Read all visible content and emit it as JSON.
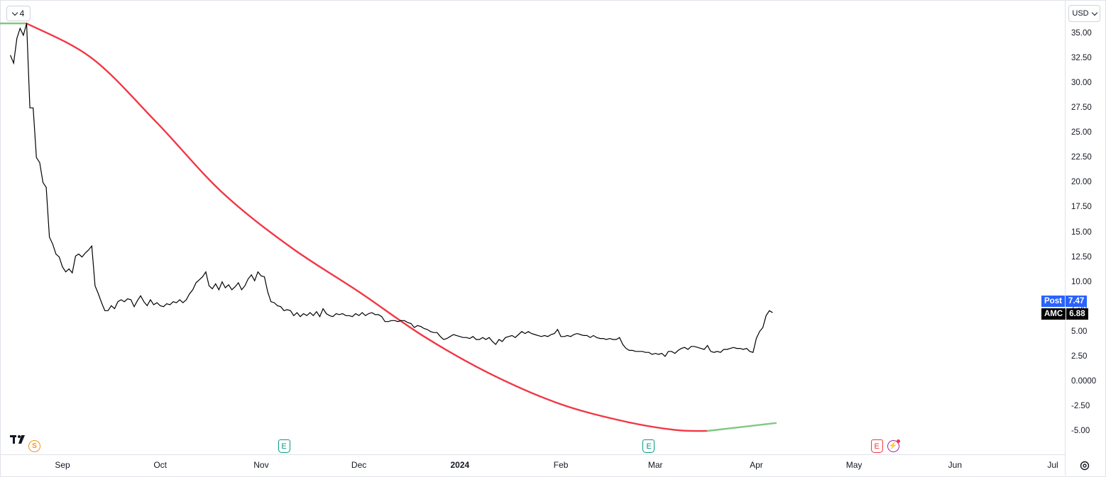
{
  "toolbar": {
    "collapse_count": "4",
    "currency": "USD"
  },
  "chart_data": {
    "type": "line",
    "ylim": [
      -5.0,
      36.0
    ],
    "y_ticks": [
      "35.00",
      "32.50",
      "30.00",
      "27.50",
      "25.00",
      "22.50",
      "20.00",
      "17.50",
      "15.00",
      "12.50",
      "10.00",
      "7.50",
      "5.00",
      "2.50",
      "0.0000",
      "-2.50",
      "-5.00"
    ],
    "x_tick_labels": [
      {
        "label": "Sep",
        "date": "2023-09-01"
      },
      {
        "label": "Oct",
        "date": "2023-10-01"
      },
      {
        "label": "Nov",
        "date": "2023-11-01"
      },
      {
        "label": "Dec",
        "date": "2023-12-01"
      },
      {
        "label": "2024",
        "date": "2024-01-01"
      },
      {
        "label": "Feb",
        "date": "2024-02-01"
      },
      {
        "label": "Mar",
        "date": "2024-03-01"
      },
      {
        "label": "Apr",
        "date": "2024-04-01"
      },
      {
        "label": "May",
        "date": "2024-05-01"
      },
      {
        "label": "Jun",
        "date": "2024-06-01"
      },
      {
        "label": "Jul",
        "date": "2024-07-01"
      }
    ],
    "series": [
      {
        "name": "AMC",
        "color": "#000000",
        "points": [
          [
            "2023-08-16",
            32.8
          ],
          [
            "2023-08-17",
            32.0
          ],
          [
            "2023-08-18",
            34.5
          ],
          [
            "2023-08-19",
            35.5
          ],
          [
            "2023-08-20",
            34.8
          ],
          [
            "2023-08-21",
            36.0
          ],
          [
            "2023-08-22",
            27.5
          ],
          [
            "2023-08-23",
            27.5
          ],
          [
            "2023-08-24",
            22.5
          ],
          [
            "2023-08-25",
            22.0
          ],
          [
            "2023-08-26",
            20.0
          ],
          [
            "2023-08-27",
            19.5
          ],
          [
            "2023-08-28",
            14.5
          ],
          [
            "2023-08-29",
            13.8
          ],
          [
            "2023-08-30",
            12.8
          ],
          [
            "2023-08-31",
            12.5
          ],
          [
            "2023-09-01",
            11.5
          ],
          [
            "2023-09-02",
            11.0
          ],
          [
            "2023-09-03",
            11.3
          ],
          [
            "2023-09-04",
            10.9
          ],
          [
            "2023-09-05",
            12.6
          ],
          [
            "2023-09-06",
            12.8
          ],
          [
            "2023-09-07",
            12.5
          ],
          [
            "2023-09-08",
            12.9
          ],
          [
            "2023-09-09",
            13.2
          ],
          [
            "2023-09-10",
            13.6
          ],
          [
            "2023-09-11",
            9.6
          ],
          [
            "2023-09-12",
            8.8
          ],
          [
            "2023-09-13",
            7.9
          ],
          [
            "2023-09-14",
            7.1
          ],
          [
            "2023-09-15",
            7.1
          ],
          [
            "2023-09-16",
            7.6
          ],
          [
            "2023-09-17",
            7.3
          ],
          [
            "2023-09-18",
            8.0
          ],
          [
            "2023-09-19",
            8.2
          ],
          [
            "2023-09-20",
            8.0
          ],
          [
            "2023-09-21",
            8.3
          ],
          [
            "2023-09-22",
            8.2
          ],
          [
            "2023-09-23",
            7.5
          ],
          [
            "2023-09-24",
            8.1
          ],
          [
            "2023-09-25",
            8.6
          ],
          [
            "2023-09-26",
            8.0
          ],
          [
            "2023-09-27",
            7.6
          ],
          [
            "2023-09-28",
            8.2
          ],
          [
            "2023-09-29",
            7.7
          ],
          [
            "2023-09-30",
            7.9
          ],
          [
            "2023-10-01",
            7.6
          ],
          [
            "2023-10-02",
            7.5
          ],
          [
            "2023-10-03",
            7.8
          ],
          [
            "2023-10-04",
            7.7
          ],
          [
            "2023-10-05",
            8.0
          ],
          [
            "2023-10-06",
            7.9
          ],
          [
            "2023-10-07",
            8.2
          ],
          [
            "2023-10-08",
            7.9
          ],
          [
            "2023-10-09",
            8.2
          ],
          [
            "2023-10-10",
            8.8
          ],
          [
            "2023-10-11",
            9.2
          ],
          [
            "2023-10-12",
            9.9
          ],
          [
            "2023-10-13",
            10.2
          ],
          [
            "2023-10-14",
            10.5
          ],
          [
            "2023-10-15",
            11.0
          ],
          [
            "2023-10-16",
            9.6
          ],
          [
            "2023-10-17",
            9.3
          ],
          [
            "2023-10-18",
            9.8
          ],
          [
            "2023-10-19",
            9.2
          ],
          [
            "2023-10-20",
            10.0
          ],
          [
            "2023-10-21",
            9.4
          ],
          [
            "2023-10-22",
            9.7
          ],
          [
            "2023-10-23",
            9.2
          ],
          [
            "2023-10-24",
            9.5
          ],
          [
            "2023-10-25",
            9.9
          ],
          [
            "2023-10-26",
            9.2
          ],
          [
            "2023-10-27",
            9.6
          ],
          [
            "2023-10-28",
            10.3
          ],
          [
            "2023-10-29",
            10.7
          ],
          [
            "2023-10-30",
            10.1
          ],
          [
            "2023-10-31",
            11.0
          ],
          [
            "2023-11-01",
            10.6
          ],
          [
            "2023-11-02",
            10.5
          ],
          [
            "2023-11-03",
            9.0
          ],
          [
            "2023-11-04",
            8.0
          ],
          [
            "2023-11-05",
            7.9
          ],
          [
            "2023-11-06",
            7.6
          ],
          [
            "2023-11-07",
            7.5
          ],
          [
            "2023-11-08",
            7.1
          ],
          [
            "2023-11-09",
            7.2
          ],
          [
            "2023-11-10",
            7.1
          ],
          [
            "2023-11-11",
            6.6
          ],
          [
            "2023-11-12",
            6.9
          ],
          [
            "2023-11-13",
            6.5
          ],
          [
            "2023-11-14",
            6.8
          ],
          [
            "2023-11-15",
            6.6
          ],
          [
            "2023-11-16",
            6.9
          ],
          [
            "2023-11-17",
            6.6
          ],
          [
            "2023-11-18",
            7.0
          ],
          [
            "2023-11-19",
            6.5
          ],
          [
            "2023-11-20",
            7.3
          ],
          [
            "2023-11-21",
            6.8
          ],
          [
            "2023-11-22",
            6.6
          ],
          [
            "2023-11-23",
            6.5
          ],
          [
            "2023-11-24",
            6.8
          ],
          [
            "2023-11-25",
            6.7
          ],
          [
            "2023-11-26",
            6.8
          ],
          [
            "2023-11-27",
            6.6
          ],
          [
            "2023-11-28",
            6.6
          ],
          [
            "2023-11-29",
            6.5
          ],
          [
            "2023-11-30",
            6.8
          ],
          [
            "2023-12-01",
            6.6
          ],
          [
            "2023-12-02",
            6.9
          ],
          [
            "2023-12-03",
            6.6
          ],
          [
            "2023-12-04",
            6.8
          ],
          [
            "2023-12-05",
            6.9
          ],
          [
            "2023-12-06",
            6.7
          ],
          [
            "2023-12-07",
            6.7
          ],
          [
            "2023-12-08",
            6.5
          ],
          [
            "2023-12-09",
            6.0
          ],
          [
            "2023-12-10",
            6.0
          ],
          [
            "2023-12-11",
            6.1
          ],
          [
            "2023-12-12",
            6.1
          ],
          [
            "2023-12-13",
            6.0
          ],
          [
            "2023-12-14",
            6.1
          ],
          [
            "2023-12-15",
            6.1
          ],
          [
            "2023-12-16",
            5.9
          ],
          [
            "2023-12-17",
            5.8
          ],
          [
            "2023-12-18",
            5.4
          ],
          [
            "2023-12-19",
            5.6
          ],
          [
            "2023-12-20",
            5.5
          ],
          [
            "2023-12-21",
            5.3
          ],
          [
            "2023-12-22",
            5.2
          ],
          [
            "2023-12-23",
            5.0
          ],
          [
            "2023-12-24",
            4.9
          ],
          [
            "2023-12-25",
            4.9
          ],
          [
            "2023-12-26",
            4.5
          ],
          [
            "2023-12-27",
            4.2
          ],
          [
            "2023-12-28",
            4.3
          ],
          [
            "2023-12-29",
            4.5
          ],
          [
            "2023-12-30",
            4.7
          ],
          [
            "2023-12-31",
            4.6
          ],
          [
            "2024-01-02",
            4.4
          ],
          [
            "2024-01-03",
            4.4
          ],
          [
            "2024-01-04",
            4.3
          ],
          [
            "2024-01-05",
            4.5
          ],
          [
            "2024-01-06",
            4.2
          ],
          [
            "2024-01-07",
            4.2
          ],
          [
            "2024-01-08",
            4.4
          ],
          [
            "2024-01-09",
            4.2
          ],
          [
            "2024-01-10",
            4.4
          ],
          [
            "2024-01-11",
            4.0
          ],
          [
            "2024-01-12",
            3.7
          ],
          [
            "2024-01-13",
            4.2
          ],
          [
            "2024-01-14",
            4.0
          ],
          [
            "2024-01-15",
            4.4
          ],
          [
            "2024-01-16",
            4.5
          ],
          [
            "2024-01-17",
            4.6
          ],
          [
            "2024-01-18",
            4.4
          ],
          [
            "2024-01-19",
            4.7
          ],
          [
            "2024-01-20",
            5.0
          ],
          [
            "2024-01-21",
            4.8
          ],
          [
            "2024-01-22",
            5.0
          ],
          [
            "2024-01-23",
            4.8
          ],
          [
            "2024-01-24",
            4.7
          ],
          [
            "2024-01-25",
            4.6
          ],
          [
            "2024-01-26",
            4.5
          ],
          [
            "2024-01-27",
            4.6
          ],
          [
            "2024-01-28",
            4.5
          ],
          [
            "2024-01-29",
            4.7
          ],
          [
            "2024-01-30",
            4.8
          ],
          [
            "2024-01-31",
            5.2
          ],
          [
            "2024-02-01",
            4.5
          ],
          [
            "2024-02-02",
            4.5
          ],
          [
            "2024-02-03",
            4.6
          ],
          [
            "2024-02-04",
            4.5
          ],
          [
            "2024-02-05",
            4.7
          ],
          [
            "2024-02-06",
            4.8
          ],
          [
            "2024-02-07",
            4.7
          ],
          [
            "2024-02-08",
            4.6
          ],
          [
            "2024-02-09",
            4.6
          ],
          [
            "2024-02-10",
            4.4
          ],
          [
            "2024-02-11",
            4.6
          ],
          [
            "2024-02-12",
            4.4
          ],
          [
            "2024-02-13",
            4.3
          ],
          [
            "2024-02-14",
            4.3
          ],
          [
            "2024-02-15",
            4.2
          ],
          [
            "2024-02-16",
            4.3
          ],
          [
            "2024-02-17",
            4.2
          ],
          [
            "2024-02-18",
            4.2
          ],
          [
            "2024-02-19",
            4.4
          ],
          [
            "2024-02-20",
            3.7
          ],
          [
            "2024-02-21",
            3.3
          ],
          [
            "2024-02-22",
            3.1
          ],
          [
            "2024-02-23",
            3.1
          ],
          [
            "2024-02-24",
            3.0
          ],
          [
            "2024-02-25",
            3.0
          ],
          [
            "2024-02-26",
            3.0
          ],
          [
            "2024-02-27",
            2.9
          ],
          [
            "2024-02-28",
            2.9
          ],
          [
            "2024-02-29",
            2.7
          ],
          [
            "2024-03-01",
            2.8
          ],
          [
            "2024-03-02",
            2.7
          ],
          [
            "2024-03-03",
            2.8
          ],
          [
            "2024-03-04",
            2.5
          ],
          [
            "2024-03-05",
            3.0
          ],
          [
            "2024-03-06",
            3.0
          ],
          [
            "2024-03-07",
            2.8
          ],
          [
            "2024-03-08",
            3.1
          ],
          [
            "2024-03-09",
            3.3
          ],
          [
            "2024-03-10",
            3.4
          ],
          [
            "2024-03-11",
            3.2
          ],
          [
            "2024-03-12",
            3.5
          ],
          [
            "2024-03-13",
            3.5
          ],
          [
            "2024-03-14",
            3.4
          ],
          [
            "2024-03-15",
            3.3
          ],
          [
            "2024-03-16",
            3.2
          ],
          [
            "2024-03-17",
            3.6
          ],
          [
            "2024-03-18",
            3.0
          ],
          [
            "2024-03-19",
            2.9
          ],
          [
            "2024-03-20",
            3.0
          ],
          [
            "2024-03-21",
            2.9
          ],
          [
            "2024-03-22",
            3.2
          ],
          [
            "2024-03-23",
            3.2
          ],
          [
            "2024-03-24",
            3.3
          ],
          [
            "2024-03-25",
            3.4
          ],
          [
            "2024-03-26",
            3.3
          ],
          [
            "2024-03-27",
            3.3
          ],
          [
            "2024-03-28",
            3.2
          ],
          [
            "2024-03-29",
            3.3
          ],
          [
            "2024-03-30",
            3.0
          ],
          [
            "2024-03-31",
            2.9
          ],
          [
            "2024-04-01",
            4.3
          ],
          [
            "2024-04-02",
            5.0
          ],
          [
            "2024-04-03",
            5.4
          ],
          [
            "2024-04-04",
            6.6
          ],
          [
            "2024-04-05",
            7.1
          ],
          [
            "2024-04-06",
            6.9
          ]
        ]
      },
      {
        "name": "",
        "color": "#f23645",
        "curve": [
          [
            "2023-08-12",
            36.0
          ],
          [
            "2023-08-21",
            36.0
          ],
          [
            "2023-09-10",
            32.5
          ],
          [
            "2023-09-30",
            26.0
          ],
          [
            "2023-10-20",
            19.0
          ],
          [
            "2023-11-10",
            13.5
          ],
          [
            "2023-12-01",
            9.0
          ],
          [
            "2023-12-21",
            4.5
          ],
          [
            "2024-01-10",
            0.8
          ],
          [
            "2024-01-31",
            -2.2
          ],
          [
            "2024-02-20",
            -4.0
          ],
          [
            "2024-03-07",
            -4.9
          ],
          [
            "2024-03-17",
            -5.0
          ],
          [
            "2024-04-07",
            -4.2
          ]
        ]
      }
    ],
    "price_labels": [
      {
        "name": "Post",
        "value": "7.47",
        "color": "#2962ff"
      },
      {
        "name": "AMC",
        "value": "6.88",
        "color": "#000000"
      }
    ],
    "events": [
      {
        "type": "split",
        "symbol": "S",
        "date": "2023-08-21"
      },
      {
        "type": "earnings",
        "symbol": "E",
        "date": "2023-11-08",
        "color": "#089981"
      },
      {
        "type": "earnings",
        "symbol": "E",
        "date": "2024-02-28",
        "color": "#089981"
      },
      {
        "type": "earnings",
        "symbol": "E",
        "date": "2024-05-08",
        "color": "#f23645"
      },
      {
        "type": "flash",
        "symbol": "⚡",
        "date": "2024-05-13"
      }
    ]
  }
}
